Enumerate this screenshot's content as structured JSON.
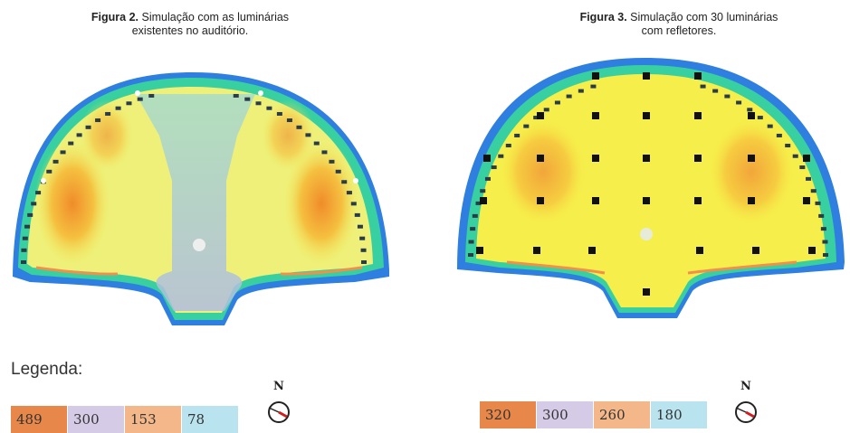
{
  "figure2": {
    "label": "Figura 2.",
    "text_line1": "Simulação com as luminárias",
    "text_line2": "existentes no auditório."
  },
  "figure3": {
    "label": "Figura 3.",
    "text_line1": "Simulação com 30 luminárias",
    "text_line2": "com refletores."
  },
  "legend": {
    "title": "Legenda:",
    "scale_fig2": [
      "489",
      "300",
      "153",
      "78"
    ],
    "scale_fig3": [
      "320",
      "300",
      "260",
      "180"
    ],
    "colors": [
      "#e8874a",
      "#d6cbe6",
      "#f3b789",
      "#b9e3ee"
    ]
  },
  "compass": {
    "label": "N",
    "needle_color": "#d01e1e"
  },
  "colors": {
    "outer_blue": "#2f7fe0",
    "ring_green": "#35d0a0",
    "yellow": "#f5ee55",
    "orange": "#f0a23a",
    "lavender": "#c3cde0",
    "marker": "#111111"
  }
}
